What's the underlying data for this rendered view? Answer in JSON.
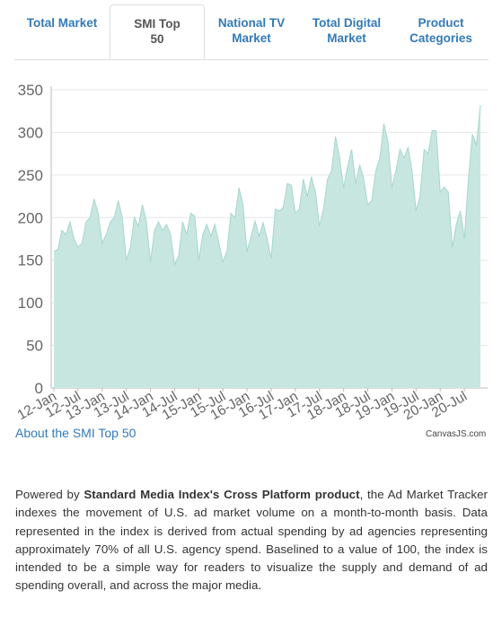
{
  "tabs": [
    {
      "label": "Total Market",
      "active": false
    },
    {
      "label": "SMI Top 50",
      "active": true
    },
    {
      "label": "National TV Market",
      "active": false
    },
    {
      "label": "Total Digital Market",
      "active": false
    },
    {
      "label": "Product Categories",
      "active": false
    }
  ],
  "chart_data": {
    "type": "area",
    "title": "",
    "xlabel": "",
    "ylabel": "",
    "ylim": [
      0,
      350
    ],
    "y_ticks": [
      "0",
      "50",
      "100",
      "150",
      "200",
      "250",
      "300",
      "350"
    ],
    "x_ticks": [
      "12-Jan",
      "12-Jul",
      "13-Jan",
      "13-Jul",
      "14-Jan",
      "14-Jul",
      "15-Jan",
      "15-Jul",
      "16-Jan",
      "16-Jul",
      "17-Jan",
      "17-Jul",
      "18-Jan",
      "18-Jul",
      "19-Jan",
      "19-Jul",
      "20-Jan",
      "20-Jul"
    ],
    "x_start": "2012-01",
    "fill_color": "#c8e6e0",
    "line_color": "#a6d6cd",
    "grid": true,
    "values": [
      160,
      163,
      185,
      180,
      195,
      175,
      165,
      170,
      195,
      200,
      222,
      205,
      170,
      180,
      195,
      200,
      220,
      200,
      150,
      165,
      200,
      190,
      215,
      195,
      148,
      185,
      195,
      185,
      192,
      180,
      145,
      155,
      195,
      180,
      205,
      202,
      150,
      180,
      192,
      178,
      192,
      170,
      148,
      160,
      205,
      200,
      235,
      215,
      160,
      178,
      196,
      178,
      194,
      175,
      152,
      210,
      208,
      212,
      240,
      238,
      205,
      210,
      245,
      225,
      248,
      230,
      190,
      210,
      245,
      255,
      295,
      270,
      235,
      260,
      280,
      240,
      262,
      245,
      215,
      220,
      255,
      270,
      310,
      290,
      235,
      255,
      280,
      270,
      282,
      255,
      208,
      225,
      280,
      275,
      302,
      302,
      230,
      236,
      230,
      165,
      192,
      208,
      175,
      245,
      298,
      285,
      332
    ]
  },
  "about_link": "About the SMI Top 50",
  "credit": "CanvasJS.com",
  "description": {
    "prefix": "Powered by ",
    "bold": "Standard Media Index's Cross Platform product",
    "suffix": ", the Ad Market Tracker indexes the movement of U.S. ad market volume on a month-to-month basis. Data represented in the index is derived from actual spending by ad agencies representing approximately 70% of all U.S. agency spend. Baselined to a value of 100, the index is intended to be a simple way for readers to visualize the supply and demand of ad spending overall, and across the major media."
  }
}
